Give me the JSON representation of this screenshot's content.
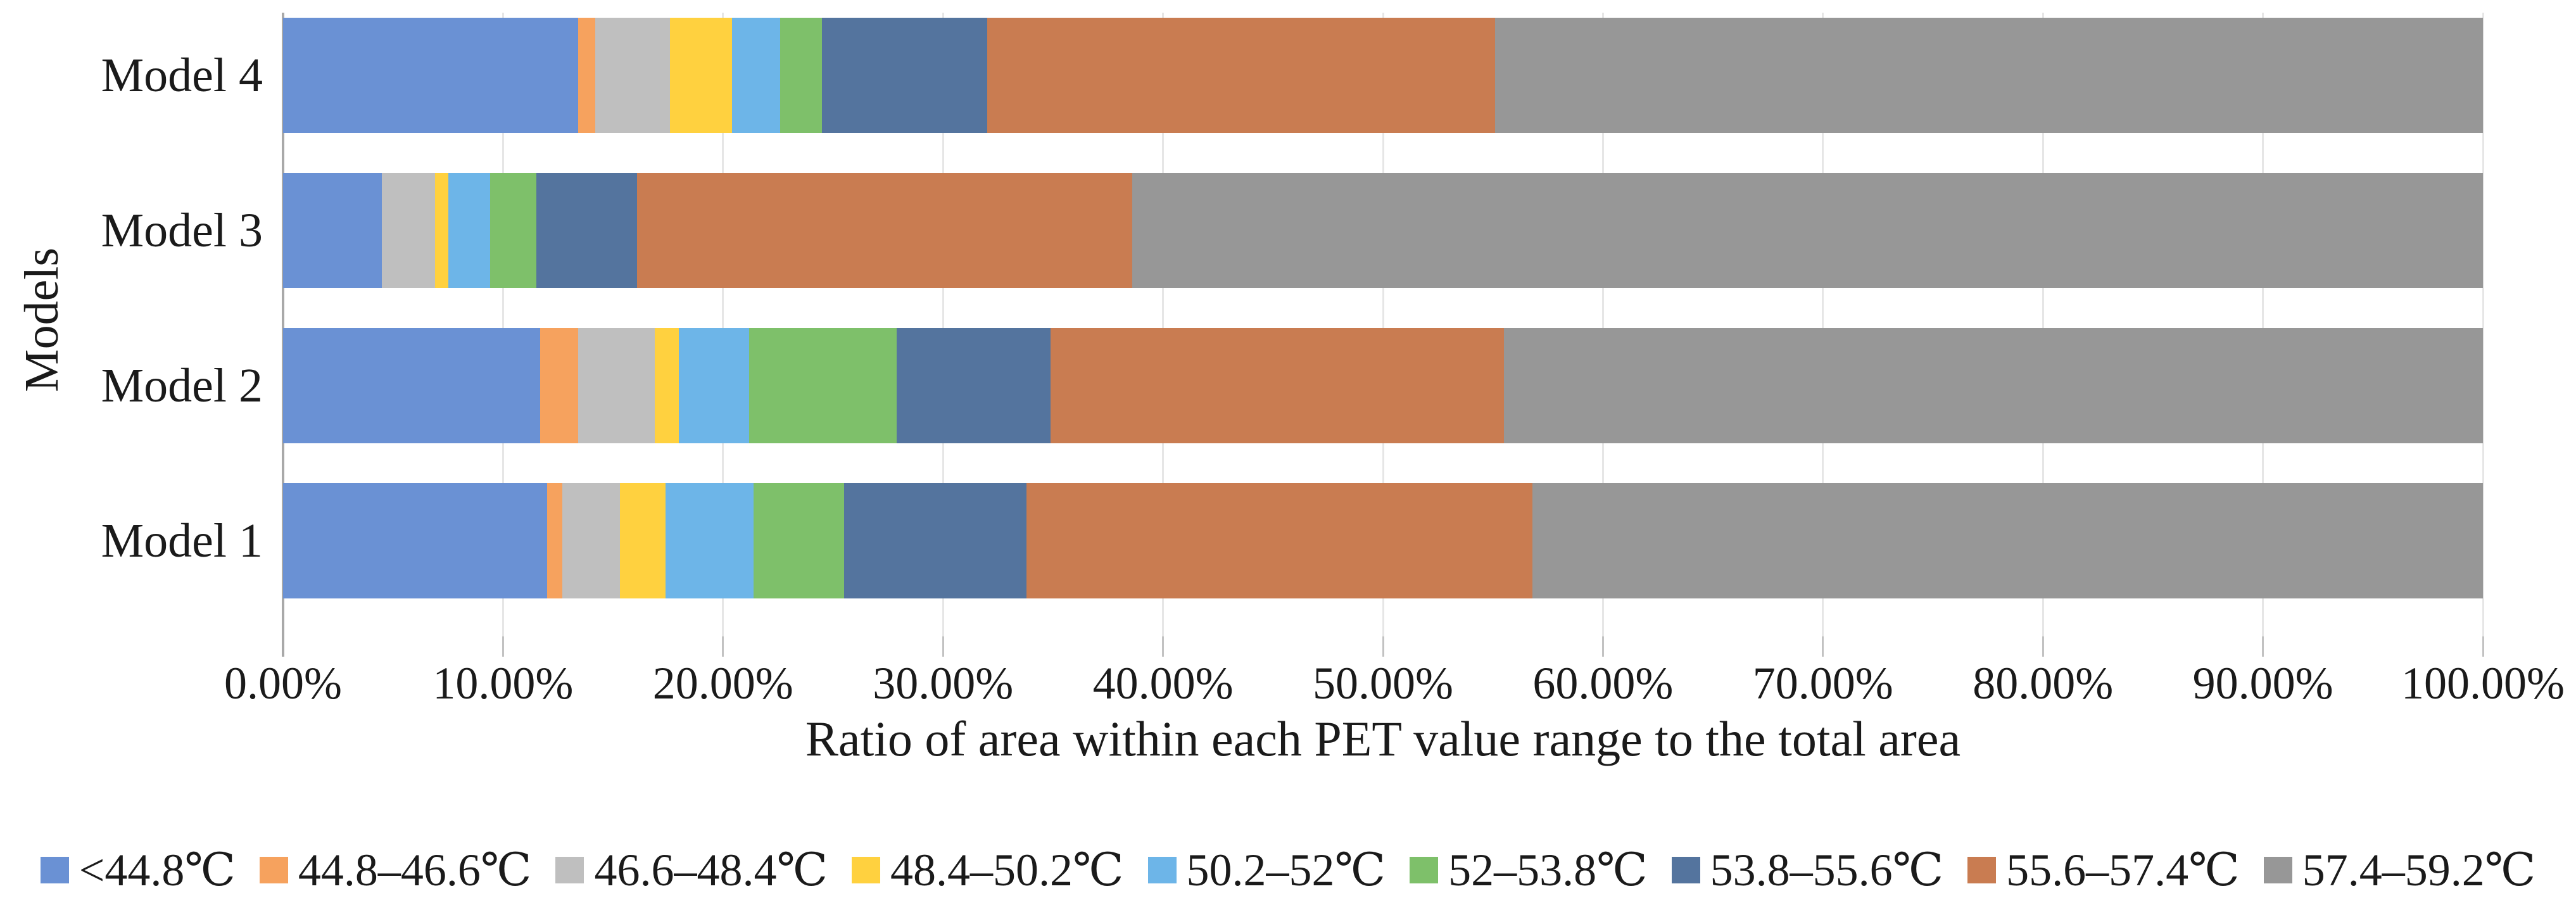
{
  "axes": {
    "y_title": "Models",
    "x_title": "Ratio of area within each PET value range to the total area"
  },
  "chart_data": {
    "type": "bar",
    "orientation": "horizontal-stacked",
    "title": "",
    "xlabel": "Ratio of area within each PET value range to the total area",
    "ylabel": "Models",
    "xlim": [
      0,
      100
    ],
    "grid": true,
    "legend_position": "bottom",
    "x_ticks": [
      "0.00%",
      "10.00%",
      "20.00%",
      "30.00%",
      "40.00%",
      "50.00%",
      "60.00%",
      "70.00%",
      "80.00%",
      "90.00%",
      "100.00%"
    ],
    "categories_top_to_bottom": [
      "Model 4",
      "Model 3",
      "Model 2",
      "Model 1"
    ],
    "series": [
      {
        "name": "<44.8℃",
        "color": "#6a91d4",
        "values": [
          13.4,
          4.5,
          11.7,
          12.0
        ]
      },
      {
        "name": "44.8–46.6℃",
        "color": "#f6a25e",
        "values": [
          0.8,
          0.0,
          1.7,
          0.7
        ]
      },
      {
        "name": "46.6–48.4℃",
        "color": "#bfbfbf",
        "values": [
          3.4,
          2.4,
          3.5,
          2.6
        ]
      },
      {
        "name": "48.4–50.2℃",
        "color": "#ffd13f",
        "values": [
          2.8,
          0.6,
          1.1,
          2.1
        ]
      },
      {
        "name": "50.2–52℃",
        "color": "#6db5e8",
        "values": [
          2.2,
          1.9,
          3.2,
          4.0
        ]
      },
      {
        "name": "52–53.8℃",
        "color": "#7ec06a",
        "values": [
          1.9,
          2.1,
          6.7,
          4.1
        ]
      },
      {
        "name": "53.8–55.6℃",
        "color": "#54749e",
        "values": [
          7.5,
          4.6,
          7.0,
          8.3
        ]
      },
      {
        "name": "55.6–57.4℃",
        "color": "#c97c51",
        "values": [
          23.1,
          22.5,
          20.6,
          23.0
        ]
      },
      {
        "name": "57.4–59.2℃",
        "color": "#979797",
        "values": [
          44.9,
          61.4,
          44.5,
          43.2
        ]
      }
    ]
  }
}
